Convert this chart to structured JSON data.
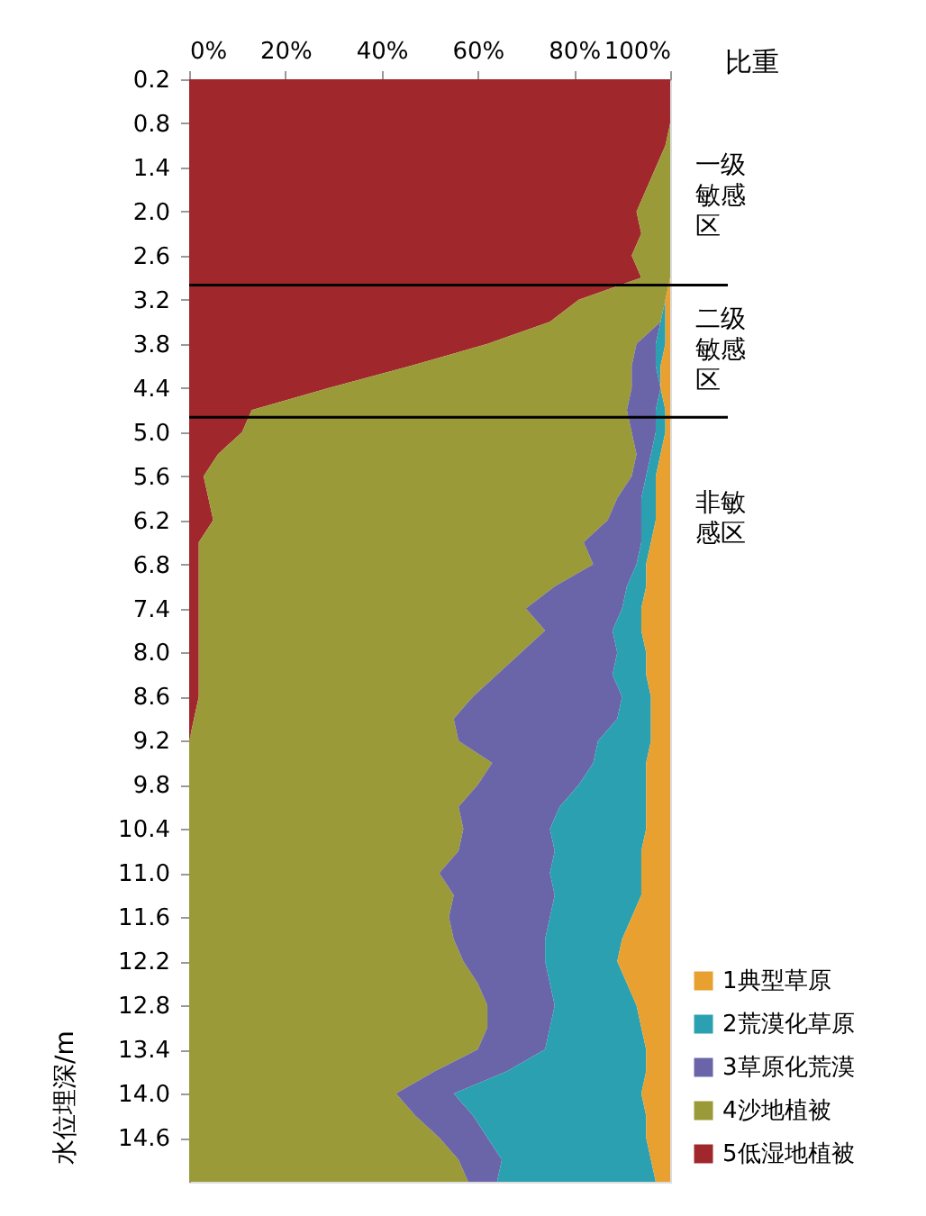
{
  "chart_data": {
    "type": "area",
    "stacked": true,
    "orientation": "horizontal",
    "xlabel": "比重",
    "ylabel": "水位埋深/m",
    "x": [
      0.2,
      0.5,
      0.8,
      1.1,
      1.4,
      1.7,
      2.0,
      2.3,
      2.6,
      2.9,
      3.2,
      3.5,
      3.8,
      4.1,
      4.4,
      4.7,
      5.0,
      5.3,
      5.6,
      5.9,
      6.2,
      6.5,
      6.8,
      7.1,
      7.4,
      7.7,
      8.0,
      8.3,
      8.6,
      8.9,
      9.2,
      9.5,
      9.8,
      10.1,
      10.4,
      10.7,
      11.0,
      11.3,
      11.6,
      11.9,
      12.2,
      12.5,
      12.8,
      13.1,
      13.4,
      13.7,
      14.0,
      14.3,
      14.6,
      14.9,
      15.2
    ],
    "xlim": [
      0,
      100
    ],
    "xticks": [
      {
        "value": 0,
        "label": "0%"
      },
      {
        "value": 20,
        "label": "20%"
      },
      {
        "value": 40,
        "label": "40%"
      },
      {
        "value": 60,
        "label": "60%"
      },
      {
        "value": 80,
        "label": "80%"
      },
      {
        "value": 100,
        "label": "100%"
      }
    ],
    "ylim": [
      15.2,
      0.2
    ],
    "yticks": [
      0.2,
      0.8,
      1.4,
      {
        "value": 2,
        "label": "2.0"
      },
      2.6,
      3.2,
      3.8,
      4.4,
      {
        "value": 5,
        "label": "5.0"
      },
      5.6,
      6.2,
      6.8,
      7.4,
      {
        "value": 8,
        "label": "8.0"
      },
      8.6,
      9.2,
      9.8,
      10.4,
      {
        "value": 11,
        "label": "11.0"
      },
      11.6,
      12.2,
      12.8,
      13.4,
      {
        "value": 14,
        "label": "14.0"
      },
      14.6
    ],
    "legend": "bottom right",
    "ref_lines": [
      {
        "axis": "y",
        "value": 3.0,
        "color": "#000000"
      },
      {
        "axis": "y",
        "value": 4.8,
        "color": "#000000"
      }
    ],
    "annotations": [
      "一级敏感区",
      "二级敏感区",
      "非敏感区"
    ],
    "series": [
      {
        "name": "5低湿地植被",
        "color": "#a0282c",
        "values": [
          100,
          100,
          100,
          99,
          97,
          95,
          93,
          94,
          92,
          94,
          81,
          75,
          62,
          46,
          29,
          13,
          11,
          6,
          3,
          4,
          5,
          2,
          2,
          2,
          2,
          2,
          2,
          2,
          2,
          1,
          0,
          null,
          null,
          null,
          null,
          null,
          null,
          null,
          null,
          null,
          null,
          null,
          null,
          null,
          null,
          null,
          null,
          null,
          null,
          null,
          null
        ]
      },
      {
        "name": "4沙地植被",
        "color": "#9a9a38",
        "values": [
          null,
          null,
          0,
          1,
          3,
          5,
          7,
          6,
          8,
          6,
          18,
          23,
          31,
          46,
          63,
          78,
          81,
          87,
          89,
          85,
          82,
          80,
          82,
          74,
          68,
          72,
          67,
          62,
          57,
          54,
          56,
          63,
          60,
          56,
          57,
          56,
          52,
          55,
          54,
          55,
          57,
          60,
          62,
          62,
          60,
          51,
          43,
          47,
          52,
          56,
          58
        ]
      },
      {
        "name": "3草原化荒漠",
        "color": "#6a64a8",
        "values": [
          null,
          null,
          null,
          null,
          null,
          null,
          null,
          null,
          null,
          null,
          null,
          0,
          4,
          5,
          6,
          6,
          5,
          3,
          3,
          5,
          7,
          12,
          9,
          15,
          20,
          14,
          20,
          24,
          31,
          34,
          29,
          21,
          21,
          21,
          18,
          20,
          23,
          21,
          21,
          19,
          17,
          15,
          14,
          13,
          14,
          15,
          12,
          12,
          10,
          9,
          6
        ]
      },
      {
        "name": "2荒漠化草原",
        "color": "#2aa0b0",
        "values": [
          null,
          null,
          null,
          null,
          null,
          null,
          null,
          null,
          null,
          null,
          0,
          1,
          2,
          1,
          0,
          2,
          2,
          2,
          2,
          3,
          3,
          2,
          2,
          4,
          4,
          6,
          6,
          7,
          6,
          7,
          11,
          11,
          14,
          18,
          20,
          18,
          19,
          18,
          17,
          16,
          15,
          16,
          17,
          19,
          21,
          29,
          39,
          36,
          33,
          31,
          33
        ]
      },
      {
        "name": "1典型草原",
        "color": "#e8a030",
        "values": [
          null,
          null,
          null,
          null,
          null,
          null,
          null,
          null,
          null,
          0,
          1,
          1,
          1,
          2,
          2,
          1,
          1,
          2,
          3,
          3,
          3,
          4,
          5,
          5,
          6,
          6,
          5,
          5,
          4,
          4,
          4,
          5,
          5,
          5,
          5,
          6,
          6,
          6,
          8,
          10,
          11,
          9,
          7,
          6,
          5,
          5,
          6,
          5,
          5,
          4,
          3
        ]
      }
    ]
  }
}
